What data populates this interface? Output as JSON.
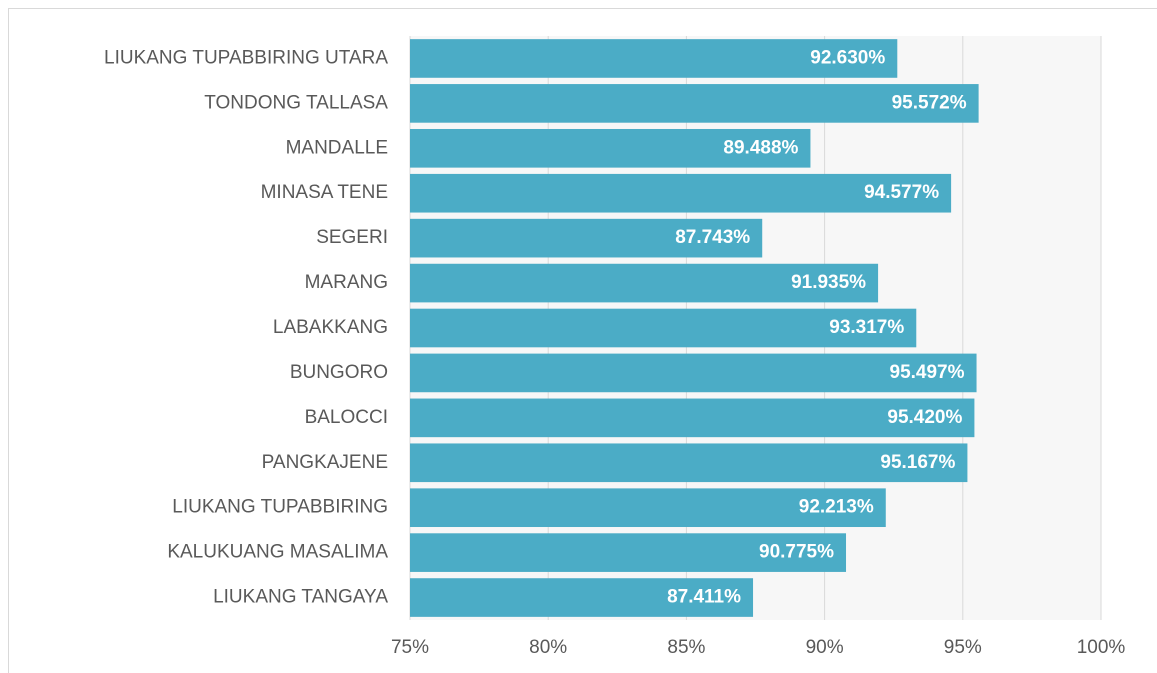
{
  "chart_data": {
    "type": "barh",
    "categories": [
      "LIUKANG TUPABBIRING UTARA",
      "TONDONG TALLASA",
      "MANDALLE",
      "MINASA TENE",
      "SEGERI",
      "MARANG",
      "LABAKKANG",
      "BUNGORO",
      "BALOCCI",
      "PANGKAJENE",
      "LIUKANG TUPABBIRING",
      "KALUKUANG MASALIMA",
      "LIUKANG TANGAYA"
    ],
    "values": [
      92.63,
      95.572,
      89.488,
      94.577,
      87.743,
      91.935,
      93.317,
      95.497,
      95.42,
      95.167,
      92.213,
      90.775,
      87.411
    ],
    "value_labels": [
      "92.630%",
      "95.572%",
      "89.488%",
      "94.577%",
      "87.743%",
      "91.935%",
      "93.317%",
      "95.497%",
      "95.420%",
      "95.167%",
      "92.213%",
      "90.775%",
      "87.411%"
    ],
    "color": "#4bacc6",
    "xlim": [
      75,
      100
    ],
    "xticks": [
      {
        "value": 75,
        "label": "75%"
      },
      {
        "value": 80,
        "label": "80%"
      },
      {
        "value": 85,
        "label": "85%"
      },
      {
        "value": 90,
        "label": "90%"
      },
      {
        "value": 95,
        "label": "95%"
      },
      {
        "value": 100,
        "label": "100%"
      }
    ],
    "grid": true
  }
}
